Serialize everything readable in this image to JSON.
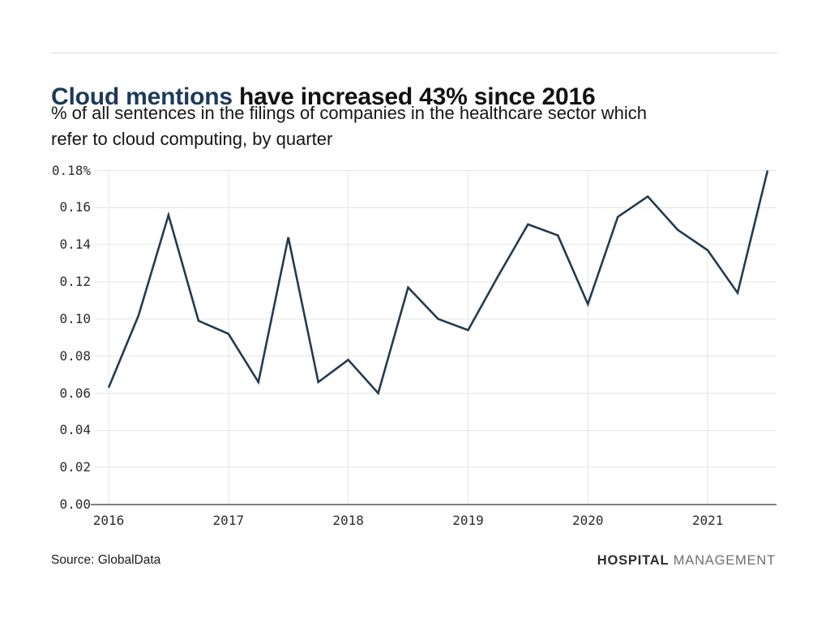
{
  "header": {
    "title_highlight": "Cloud mentions",
    "title_rest": " have increased 43% since 2016",
    "subtitle_line1": "% of all sentences in the filings of companies in the healthcare sector which",
    "subtitle_line2": "refer to cloud computing, by quarter"
  },
  "footer": {
    "source": "Source: GlobalData",
    "brand_part1": "HOSPITAL",
    "brand_part2": "MANAGEMENT"
  },
  "colors": {
    "title_accent": "#1d3a5a",
    "line": "#243a52",
    "grid": "#e5e5e5",
    "axis": "#7f7f7f",
    "tick_text": "#2c2c2c"
  },
  "chart_data": {
    "type": "line",
    "title": "Cloud mentions have increased 43% since 2016",
    "subtitle": "% of all sentences in the filings of companies in the healthcare sector which refer to cloud computing, by quarter",
    "unit": "%",
    "x": [
      "2016 Q1",
      "2016 Q2",
      "2016 Q3",
      "2016 Q4",
      "2017 Q1",
      "2017 Q2",
      "2017 Q3",
      "2017 Q4",
      "2018 Q1",
      "2018 Q2",
      "2018 Q3",
      "2018 Q4",
      "2019 Q1",
      "2019 Q2",
      "2019 Q3",
      "2019 Q4",
      "2020 Q1",
      "2020 Q2",
      "2020 Q3",
      "2020 Q4",
      "2021 Q1",
      "2021 Q2",
      "2021 Q3"
    ],
    "values": [
      0.063,
      0.102,
      0.156,
      0.099,
      0.092,
      0.066,
      0.144,
      0.066,
      0.078,
      0.06,
      0.117,
      0.1,
      0.094,
      0.123,
      0.151,
      0.145,
      0.108,
      0.155,
      0.166,
      0.148,
      0.137,
      0.114,
      0.18
    ],
    "x_ticks": [
      "2016",
      "2017",
      "2018",
      "2019",
      "2020",
      "2021"
    ],
    "y_tick_labels": [
      "0.18%",
      "0.16",
      "0.14",
      "0.12",
      "0.10",
      "0.08",
      "0.06",
      "0.04",
      "0.02",
      "0.00"
    ],
    "y_tick_values": [
      0.18,
      0.16,
      0.14,
      0.12,
      0.1,
      0.08,
      0.06,
      0.04,
      0.02,
      0.0
    ],
    "ylim": [
      0,
      0.18
    ],
    "grid": true,
    "legend": "none",
    "source": "GlobalData"
  }
}
